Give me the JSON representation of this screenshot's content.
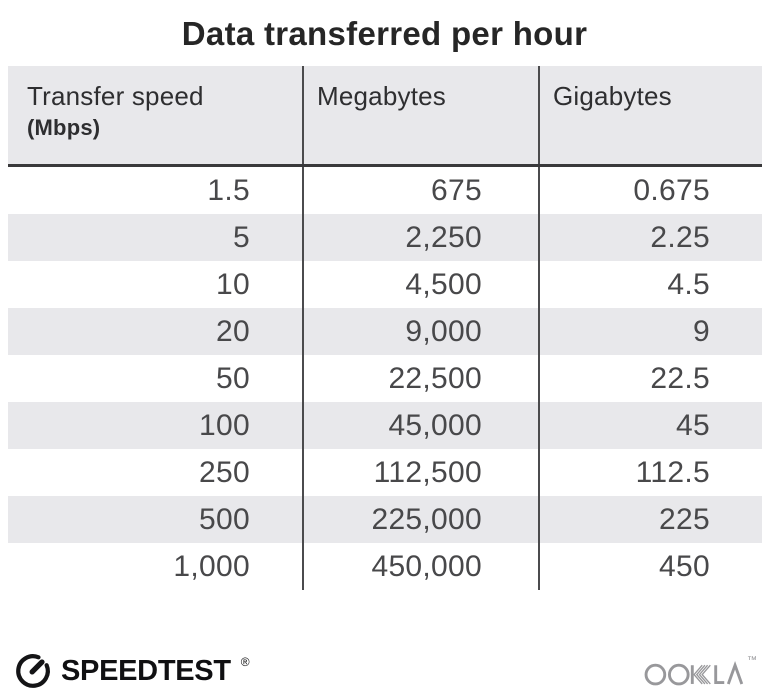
{
  "title": "Data transferred per hour",
  "table": {
    "columns": [
      {
        "label": "Transfer speed",
        "sublabel": "(Mbps)"
      },
      {
        "label": "Megabytes"
      },
      {
        "label": "Gigabytes"
      }
    ],
    "rows": [
      [
        "1.5",
        "675",
        "0.675"
      ],
      [
        "5",
        "2,250",
        "2.25"
      ],
      [
        "10",
        "4,500",
        "4.5"
      ],
      [
        "20",
        "9,000",
        "9"
      ],
      [
        "50",
        "22,500",
        "22.5"
      ],
      [
        "100",
        "45,000",
        "45"
      ],
      [
        "250",
        "112,500",
        "112.5"
      ],
      [
        "500",
        "225,000",
        "225"
      ],
      [
        "1,000",
        "450,000",
        "450"
      ]
    ]
  },
  "footer": {
    "speedtest_label": "SPEEDTEST",
    "speedtest_trademark": "®",
    "ookla_label": "OOKLA",
    "ookla_trademark": "™"
  },
  "colors": {
    "header_bg": "#e8e8eb",
    "row_alt_bg": "#e8e8eb",
    "column_divider": "#4b4b4d",
    "header_rule": "#39393b",
    "title_text": "#262626",
    "cell_text": "#48484a",
    "speedtest_black": "#101012",
    "ookla_gray": "#98989b"
  },
  "chart_data": {
    "type": "table",
    "title": "Data transferred per hour",
    "columns": [
      "Transfer speed (Mbps)",
      "Megabytes",
      "Gigabytes"
    ],
    "rows": [
      [
        1.5,
        675,
        0.675
      ],
      [
        5,
        2250,
        2.25
      ],
      [
        10,
        4500,
        4.5
      ],
      [
        20,
        9000,
        9
      ],
      [
        50,
        22500,
        22.5
      ],
      [
        100,
        45000,
        45
      ],
      [
        250,
        112500,
        112.5
      ],
      [
        500,
        225000,
        225
      ],
      [
        1000,
        450000,
        450
      ]
    ]
  }
}
